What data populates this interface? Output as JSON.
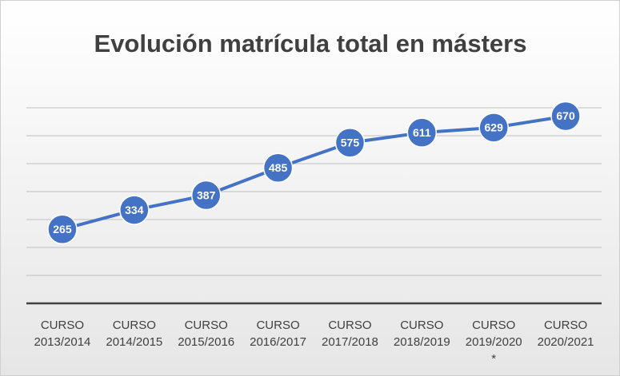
{
  "chart_data": {
    "type": "line",
    "title": "Evolución matrícula total en másters",
    "categories": [
      "CURSO\n2013/2014",
      "CURSO\n2014/2015",
      "CURSO\n2015/2016",
      "CURSO\n2016/2017",
      "CURSO\n2017/2018",
      "CURSO\n2018/2019",
      "CURSO\n2019/2020\n*",
      "CURSO\n2020/2021"
    ],
    "values": [
      265,
      334,
      387,
      485,
      575,
      611,
      629,
      670
    ],
    "color": "#4472c4",
    "ylim": [
      0,
      700
    ],
    "yticks": [
      0,
      100,
      200,
      300,
      400,
      500,
      600,
      700
    ],
    "grid": true
  }
}
